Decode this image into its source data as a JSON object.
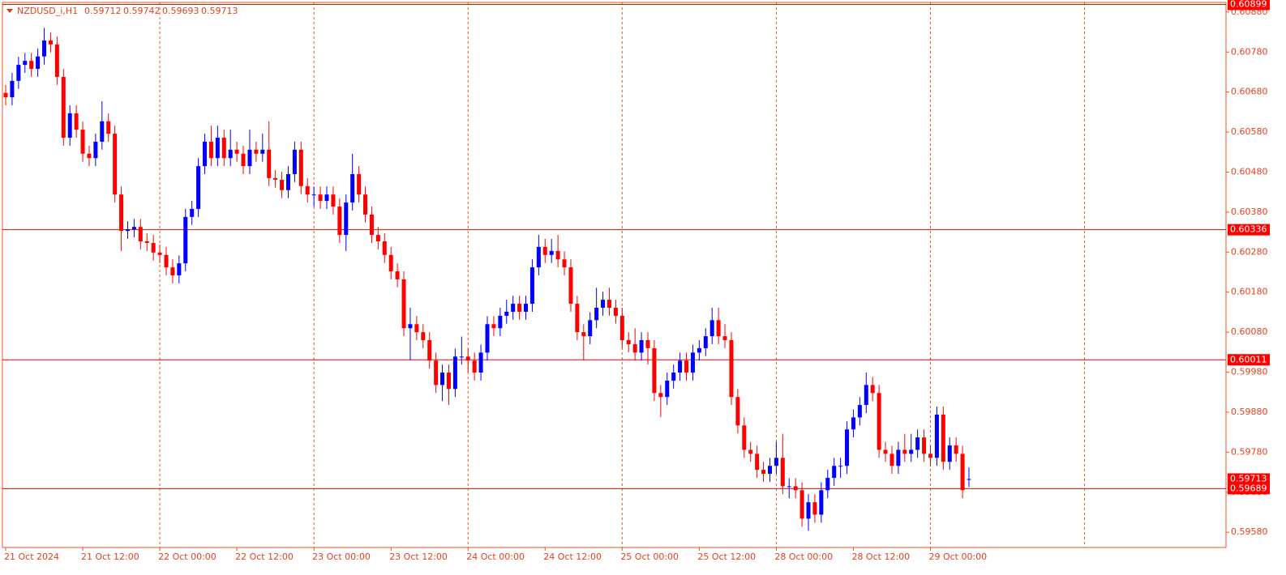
{
  "chart_data": {
    "type": "candlestick",
    "symbol": "NZDUSD_i,H1",
    "categories": [
      "21 Oct 2024",
      null,
      null,
      null,
      null,
      null,
      null,
      null,
      null,
      null,
      null,
      null,
      "21 Oct 12:00",
      null,
      null,
      null,
      null,
      null,
      null,
      null,
      null,
      null,
      null,
      null,
      "22 Oct 00:00",
      null,
      null,
      null,
      null,
      null,
      null,
      null,
      null,
      null,
      null,
      null,
      "22 Oct 12:00",
      null,
      null,
      null,
      null,
      null,
      null,
      null,
      null,
      null,
      null,
      null,
      "23 Oct 00:00",
      null,
      null,
      null,
      null,
      null,
      null,
      null,
      null,
      null,
      null,
      null,
      "23 Oct 12:00",
      null,
      null,
      null,
      null,
      null,
      null,
      null,
      null,
      null,
      null,
      null,
      "24 Oct 00:00",
      null,
      null,
      null,
      null,
      null,
      null,
      null,
      null,
      null,
      null,
      null,
      "24 Oct 12:00",
      null,
      null,
      null,
      null,
      null,
      null,
      null,
      null,
      null,
      null,
      null,
      "25 Oct 00:00",
      null,
      null,
      null,
      null,
      null,
      null,
      null,
      null,
      null,
      null,
      null,
      "25 Oct 12:00",
      null,
      null,
      null,
      null,
      null,
      null,
      null,
      null,
      null,
      null,
      null,
      "28 Oct 00:00",
      null,
      null,
      null,
      null,
      null,
      null,
      null,
      null,
      null,
      null,
      null,
      "28 Oct 12:00",
      null,
      null,
      null,
      null,
      null,
      null,
      null,
      null,
      null,
      null,
      null,
      "29 Oct 00:00",
      null,
      null,
      null,
      null,
      null,
      null
    ],
    "ohlc": [
      [
        0.60678,
        0.60698,
        0.60647,
        0.60667
      ],
      [
        0.60667,
        0.60728,
        0.60647,
        0.60708
      ],
      [
        0.60708,
        0.60768,
        0.60688,
        0.60748
      ],
      [
        0.60748,
        0.60778,
        0.60728,
        0.60758
      ],
      [
        0.60758,
        0.60778,
        0.60718,
        0.60738
      ],
      [
        0.60738,
        0.60789,
        0.60718,
        0.60769
      ],
      [
        0.60769,
        0.6084,
        0.60749,
        0.60809
      ],
      [
        0.60809,
        0.60829,
        0.60779,
        0.60799
      ],
      [
        0.60799,
        0.60819,
        0.60698,
        0.60718
      ],
      [
        0.60718,
        0.60738,
        0.60546,
        0.60566
      ],
      [
        0.60566,
        0.60647,
        0.60546,
        0.60627
      ],
      [
        0.60627,
        0.60647,
        0.60566,
        0.60586
      ],
      [
        0.60586,
        0.60606,
        0.60506,
        0.60526
      ],
      [
        0.60526,
        0.60546,
        0.60495,
        0.60515
      ],
      [
        0.60515,
        0.60576,
        0.60495,
        0.60556
      ],
      [
        0.60556,
        0.60657,
        0.60536,
        0.60607
      ],
      [
        0.60607,
        0.60627,
        0.60556,
        0.60576
      ],
      [
        0.60576,
        0.60596,
        0.60404,
        0.60424
      ],
      [
        0.60424,
        0.60444,
        0.60283,
        0.60333
      ],
      [
        0.60333,
        0.60357,
        0.60313,
        0.60337
      ],
      [
        0.60337,
        0.60363,
        0.60317,
        0.60343
      ],
      [
        0.60343,
        0.60363,
        0.60287,
        0.60307
      ],
      [
        0.60307,
        0.60327,
        0.60283,
        0.60303
      ],
      [
        0.60303,
        0.60323,
        0.60259,
        0.60279
      ],
      [
        0.60279,
        0.60299,
        0.60253,
        0.60273
      ],
      [
        0.60273,
        0.60293,
        0.60222,
        0.60242
      ],
      [
        0.60242,
        0.60262,
        0.60202,
        0.60222
      ],
      [
        0.60222,
        0.60272,
        0.60202,
        0.60252
      ],
      [
        0.60252,
        0.60388,
        0.60232,
        0.60368
      ],
      [
        0.60368,
        0.60408,
        0.60348,
        0.60388
      ],
      [
        0.60388,
        0.60515,
        0.60368,
        0.60495
      ],
      [
        0.60495,
        0.60576,
        0.60475,
        0.60556
      ],
      [
        0.60556,
        0.60596,
        0.60495,
        0.60515
      ],
      [
        0.60515,
        0.60596,
        0.60495,
        0.60566
      ],
      [
        0.60566,
        0.60586,
        0.60495,
        0.60515
      ],
      [
        0.60515,
        0.60586,
        0.60495,
        0.60536
      ],
      [
        0.60536,
        0.60556,
        0.60506,
        0.60526
      ],
      [
        0.60526,
        0.60546,
        0.60475,
        0.60495
      ],
      [
        0.60495,
        0.60586,
        0.60475,
        0.60536
      ],
      [
        0.60536,
        0.60556,
        0.60506,
        0.60526
      ],
      [
        0.60526,
        0.60576,
        0.60506,
        0.60536
      ],
      [
        0.60536,
        0.60607,
        0.60445,
        0.60465
      ],
      [
        0.60465,
        0.60485,
        0.60441,
        0.60461
      ],
      [
        0.60461,
        0.60481,
        0.60415,
        0.60435
      ],
      [
        0.60435,
        0.60495,
        0.60415,
        0.60475
      ],
      [
        0.60475,
        0.60556,
        0.60455,
        0.60536
      ],
      [
        0.60536,
        0.60556,
        0.60425,
        0.60445
      ],
      [
        0.60445,
        0.60465,
        0.60404,
        0.60424
      ],
      [
        0.60424,
        0.60444,
        0.60394,
        0.60424
      ],
      [
        0.60424,
        0.60444,
        0.60388,
        0.60408
      ],
      [
        0.60408,
        0.60444,
        0.60388,
        0.60424
      ],
      [
        0.60424,
        0.60444,
        0.60374,
        0.60394
      ],
      [
        0.60394,
        0.60414,
        0.60303,
        0.60323
      ],
      [
        0.60323,
        0.60424,
        0.60283,
        0.60404
      ],
      [
        0.60404,
        0.60526,
        0.60384,
        0.60475
      ],
      [
        0.60475,
        0.60495,
        0.60404,
        0.60424
      ],
      [
        0.60424,
        0.60444,
        0.60354,
        0.60374
      ],
      [
        0.60374,
        0.60394,
        0.60303,
        0.60323
      ],
      [
        0.60323,
        0.60343,
        0.60287,
        0.60307
      ],
      [
        0.60307,
        0.60327,
        0.60253,
        0.60273
      ],
      [
        0.60273,
        0.60293,
        0.60212,
        0.60232
      ],
      [
        0.60232,
        0.60252,
        0.60192,
        0.60212
      ],
      [
        0.60212,
        0.60232,
        0.6007,
        0.6009
      ],
      [
        0.6009,
        0.60141,
        0.6001,
        0.601
      ],
      [
        0.601,
        0.6012,
        0.6006,
        0.6008
      ],
      [
        0.6008,
        0.601,
        0.6004,
        0.6006
      ],
      [
        0.6006,
        0.6008,
        0.59989,
        0.60009
      ],
      [
        0.60009,
        0.60029,
        0.59928,
        0.59948
      ],
      [
        0.59948,
        0.59999,
        0.59908,
        0.59979
      ],
      [
        0.59979,
        0.59999,
        0.59898,
        0.59938
      ],
      [
        0.59938,
        0.60039,
        0.59918,
        0.60019
      ],
      [
        0.60019,
        0.60069,
        0.59999,
        0.60019
      ],
      [
        0.60019,
        0.60039,
        0.59979,
        0.60009
      ],
      [
        0.60009,
        0.60029,
        0.59959,
        0.59979
      ],
      [
        0.59979,
        0.60049,
        0.59959,
        0.60029
      ],
      [
        0.60029,
        0.6012,
        0.60009,
        0.601
      ],
      [
        0.601,
        0.6012,
        0.6007,
        0.6009
      ],
      [
        0.6009,
        0.60141,
        0.6007,
        0.60121
      ],
      [
        0.60121,
        0.60161,
        0.60101,
        0.60131
      ],
      [
        0.60131,
        0.60171,
        0.60111,
        0.60151
      ],
      [
        0.60151,
        0.60171,
        0.60111,
        0.60131
      ],
      [
        0.60131,
        0.60171,
        0.60111,
        0.60151
      ],
      [
        0.60151,
        0.60262,
        0.60131,
        0.60242
      ],
      [
        0.60242,
        0.60323,
        0.60222,
        0.60293
      ],
      [
        0.60293,
        0.60313,
        0.60253,
        0.60273
      ],
      [
        0.60273,
        0.60313,
        0.60253,
        0.60283
      ],
      [
        0.60283,
        0.60323,
        0.60242,
        0.60262
      ],
      [
        0.60262,
        0.60282,
        0.60222,
        0.60242
      ],
      [
        0.60242,
        0.60262,
        0.60131,
        0.60151
      ],
      [
        0.60151,
        0.60171,
        0.6006,
        0.6008
      ],
      [
        0.6008,
        0.601,
        0.6001,
        0.6007
      ],
      [
        0.6007,
        0.6013,
        0.6005,
        0.6011
      ],
      [
        0.6011,
        0.60191,
        0.6009,
        0.60141
      ],
      [
        0.60141,
        0.60181,
        0.60121,
        0.60161
      ],
      [
        0.60161,
        0.60191,
        0.60121,
        0.60141
      ],
      [
        0.60141,
        0.60161,
        0.60101,
        0.60121
      ],
      [
        0.60121,
        0.60141,
        0.6004,
        0.6006
      ],
      [
        0.6006,
        0.6008,
        0.6003,
        0.6005
      ],
      [
        0.6005,
        0.6009,
        0.60009,
        0.60029
      ],
      [
        0.60029,
        0.6008,
        0.60009,
        0.6006
      ],
      [
        0.6006,
        0.6008,
        0.59999,
        0.6004
      ],
      [
        0.6004,
        0.6006,
        0.59908,
        0.59928
      ],
      [
        0.59928,
        0.59948,
        0.59868,
        0.59918
      ],
      [
        0.59918,
        0.59979,
        0.59898,
        0.59959
      ],
      [
        0.59959,
        0.59999,
        0.59939,
        0.59979
      ],
      [
        0.59979,
        0.60029,
        0.59959,
        0.60009
      ],
      [
        0.60009,
        0.60029,
        0.59959,
        0.59979
      ],
      [
        0.59979,
        0.60049,
        0.59959,
        0.60029
      ],
      [
        0.60029,
        0.6006,
        0.60009,
        0.6004
      ],
      [
        0.6004,
        0.6009,
        0.6002,
        0.6007
      ],
      [
        0.6007,
        0.60141,
        0.6005,
        0.6011
      ],
      [
        0.6011,
        0.60141,
        0.6005,
        0.6007
      ],
      [
        0.6007,
        0.601,
        0.6004,
        0.6006
      ],
      [
        0.6006,
        0.6008,
        0.59898,
        0.59918
      ],
      [
        0.59918,
        0.59938,
        0.59827,
        0.59847
      ],
      [
        0.59847,
        0.59867,
        0.59766,
        0.59786
      ],
      [
        0.59786,
        0.59806,
        0.59756,
        0.59776
      ],
      [
        0.59776,
        0.59796,
        0.59716,
        0.59736
      ],
      [
        0.59736,
        0.59756,
        0.59706,
        0.59726
      ],
      [
        0.59726,
        0.59766,
        0.59706,
        0.59746
      ],
      [
        0.59746,
        0.59806,
        0.59726,
        0.59766
      ],
      [
        0.59766,
        0.59826,
        0.59675,
        0.59695
      ],
      [
        0.59695,
        0.59715,
        0.59665,
        0.59695
      ],
      [
        0.59695,
        0.59715,
        0.59665,
        0.59685
      ],
      [
        0.59685,
        0.59705,
        0.59594,
        0.59614
      ],
      [
        0.59614,
        0.59675,
        0.59584,
        0.59655
      ],
      [
        0.59655,
        0.59675,
        0.59604,
        0.59624
      ],
      [
        0.59624,
        0.59705,
        0.59604,
        0.59685
      ],
      [
        0.59685,
        0.59736,
        0.59665,
        0.59716
      ],
      [
        0.59716,
        0.59766,
        0.59696,
        0.59746
      ],
      [
        0.59746,
        0.59766,
        0.59716,
        0.59746
      ],
      [
        0.59746,
        0.59857,
        0.59726,
        0.59837
      ],
      [
        0.59837,
        0.59887,
        0.59817,
        0.59867
      ],
      [
        0.59867,
        0.59918,
        0.59847,
        0.59898
      ],
      [
        0.59898,
        0.59979,
        0.59878,
        0.59948
      ],
      [
        0.59948,
        0.59968,
        0.59908,
        0.59928
      ],
      [
        0.59928,
        0.59948,
        0.59766,
        0.59786
      ],
      [
        0.59786,
        0.59806,
        0.59756,
        0.59776
      ],
      [
        0.59776,
        0.59796,
        0.59726,
        0.59746
      ],
      [
        0.59746,
        0.59806,
        0.59726,
        0.59786
      ],
      [
        0.59786,
        0.59826,
        0.59756,
        0.59776
      ],
      [
        0.59776,
        0.59826,
        0.59756,
        0.59786
      ],
      [
        0.59786,
        0.59837,
        0.59766,
        0.59817
      ],
      [
        0.59817,
        0.59837,
        0.59756,
        0.59776
      ],
      [
        0.59776,
        0.59796,
        0.59746,
        0.59766
      ],
      [
        0.59766,
        0.59894,
        0.59746,
        0.59874
      ],
      [
        0.59874,
        0.59894,
        0.59736,
        0.59756
      ],
      [
        0.59756,
        0.59817,
        0.59736,
        0.59797
      ],
      [
        0.59797,
        0.59817,
        0.59756,
        0.59776
      ],
      [
        0.59776,
        0.59796,
        0.59665,
        0.59685
      ],
      [
        0.59712,
        0.59742,
        0.59693,
        0.59713
      ]
    ],
    "ylim": [
      0.59542,
      0.60904
    ],
    "yticks": [
      {
        "value": 0.6088,
        "label": "0.60880"
      },
      {
        "value": 0.6078,
        "label": "0.60780"
      },
      {
        "value": 0.6068,
        "label": "0.60680"
      },
      {
        "value": 0.6058,
        "label": "0.60580"
      },
      {
        "value": 0.6048,
        "label": "0.60480"
      },
      {
        "value": 0.6038,
        "label": "0.60380"
      },
      {
        "value": 0.6028,
        "label": "0.60280"
      },
      {
        "value": 0.6018,
        "label": "0.60180"
      },
      {
        "value": 0.6008,
        "label": "0.60080"
      },
      {
        "value": 0.5998,
        "label": "0.59980"
      },
      {
        "value": 0.5988,
        "label": "0.59880"
      },
      {
        "value": 0.5978,
        "label": "0.59780"
      },
      {
        "value": 0.5968,
        "label": "0.59680"
      },
      {
        "value": 0.5958,
        "label": "0.59580"
      }
    ],
    "price_lines": [
      0.60899,
      0.60336,
      0.60011,
      0.59689
    ],
    "colors": {
      "up": "#0000ff",
      "down": "#ff0000",
      "level": "#ff0000",
      "grid": "#ee5522"
    }
  }
}
